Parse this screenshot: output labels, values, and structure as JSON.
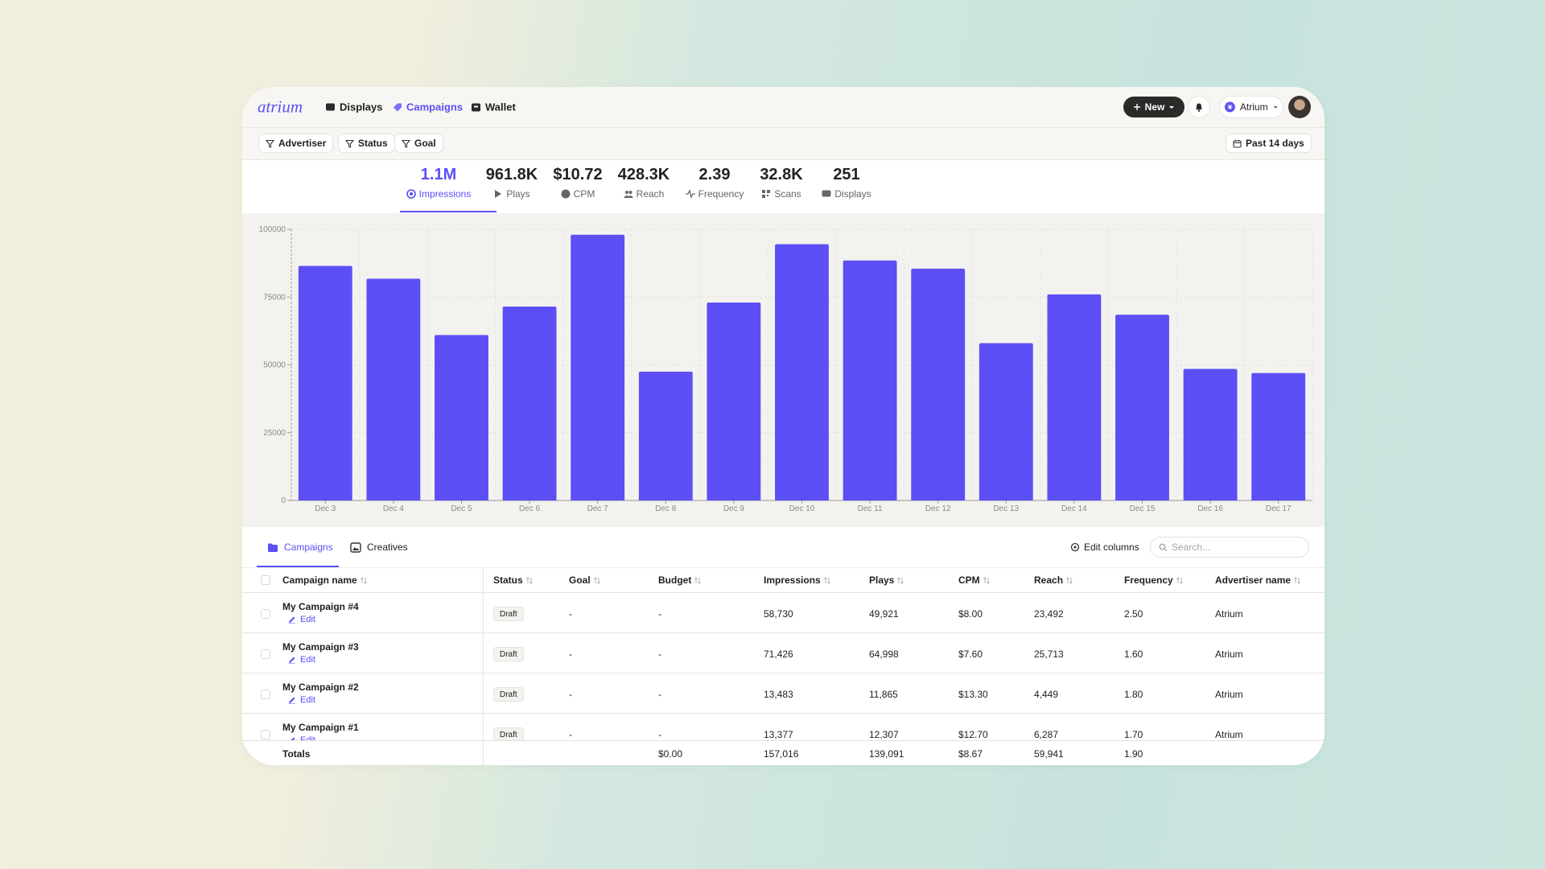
{
  "nav": {
    "logo": "atrium",
    "links": [
      "Displays",
      "Campaigns",
      "Wallet"
    ],
    "new_button": "New",
    "account": "Atrium"
  },
  "filters": {
    "items": [
      "Advertiser",
      "Status",
      "Goal"
    ],
    "date_range": "Past 14 days"
  },
  "metrics": [
    {
      "value": "1.1M",
      "label": "Impressions"
    },
    {
      "value": "961.8K",
      "label": "Plays"
    },
    {
      "value": "$10.72",
      "label": "CPM"
    },
    {
      "value": "428.3K",
      "label": "Reach"
    },
    {
      "value": "2.39",
      "label": "Frequency"
    },
    {
      "value": "32.8K",
      "label": "Scans"
    },
    {
      "value": "251",
      "label": "Displays"
    }
  ],
  "chart_data": {
    "type": "bar",
    "categories": [
      "Dec 3",
      "Dec 4",
      "Dec 5",
      "Dec 6",
      "Dec 7",
      "Dec 8",
      "Dec 9",
      "Dec 10",
      "Dec 11",
      "Dec 12",
      "Dec 13",
      "Dec 14",
      "Dec 15",
      "Dec 16",
      "Dec 17"
    ],
    "values": [
      86500,
      81800,
      61000,
      71500,
      98000,
      47500,
      73000,
      94500,
      88500,
      85500,
      58000,
      76000,
      68500,
      48500,
      47000
    ],
    "color": "#5b4ff5",
    "ylim": [
      0,
      100000
    ],
    "yticks": [
      0,
      25000,
      50000,
      75000,
      100000
    ],
    "grid": true
  },
  "tabs": [
    "Campaigns",
    "Creatives"
  ],
  "toolbar": {
    "edit_columns": "Edit columns",
    "search_placeholder": "Search..."
  },
  "table": {
    "columns": [
      "Campaign name",
      "Status",
      "Goal",
      "Budget",
      "Impressions",
      "Plays",
      "CPM",
      "Reach",
      "Frequency",
      "Advertiser name"
    ],
    "row_action": "Edit",
    "rows": [
      [
        "My Campaign #4",
        "Draft",
        "-",
        "-",
        "58,730",
        "49,921",
        "$8.00",
        "23,492",
        "2.50",
        "Atrium"
      ],
      [
        "My Campaign #3",
        "Draft",
        "-",
        "-",
        "71,426",
        "64,998",
        "$7.60",
        "25,713",
        "1.60",
        "Atrium"
      ],
      [
        "My Campaign #2",
        "Draft",
        "-",
        "-",
        "13,483",
        "11,865",
        "$13.30",
        "4,449",
        "1.80",
        "Atrium"
      ],
      [
        "My Campaign #1",
        "Draft",
        "-",
        "-",
        "13,377",
        "12,307",
        "$12.70",
        "6,287",
        "1.70",
        "Atrium"
      ]
    ],
    "totals": {
      "label": "Totals",
      "budget": "$0.00",
      "impressions": "157,016",
      "plays": "139,091",
      "cpm": "$8.67",
      "reach": "59,941",
      "frequency": "1.90"
    }
  }
}
